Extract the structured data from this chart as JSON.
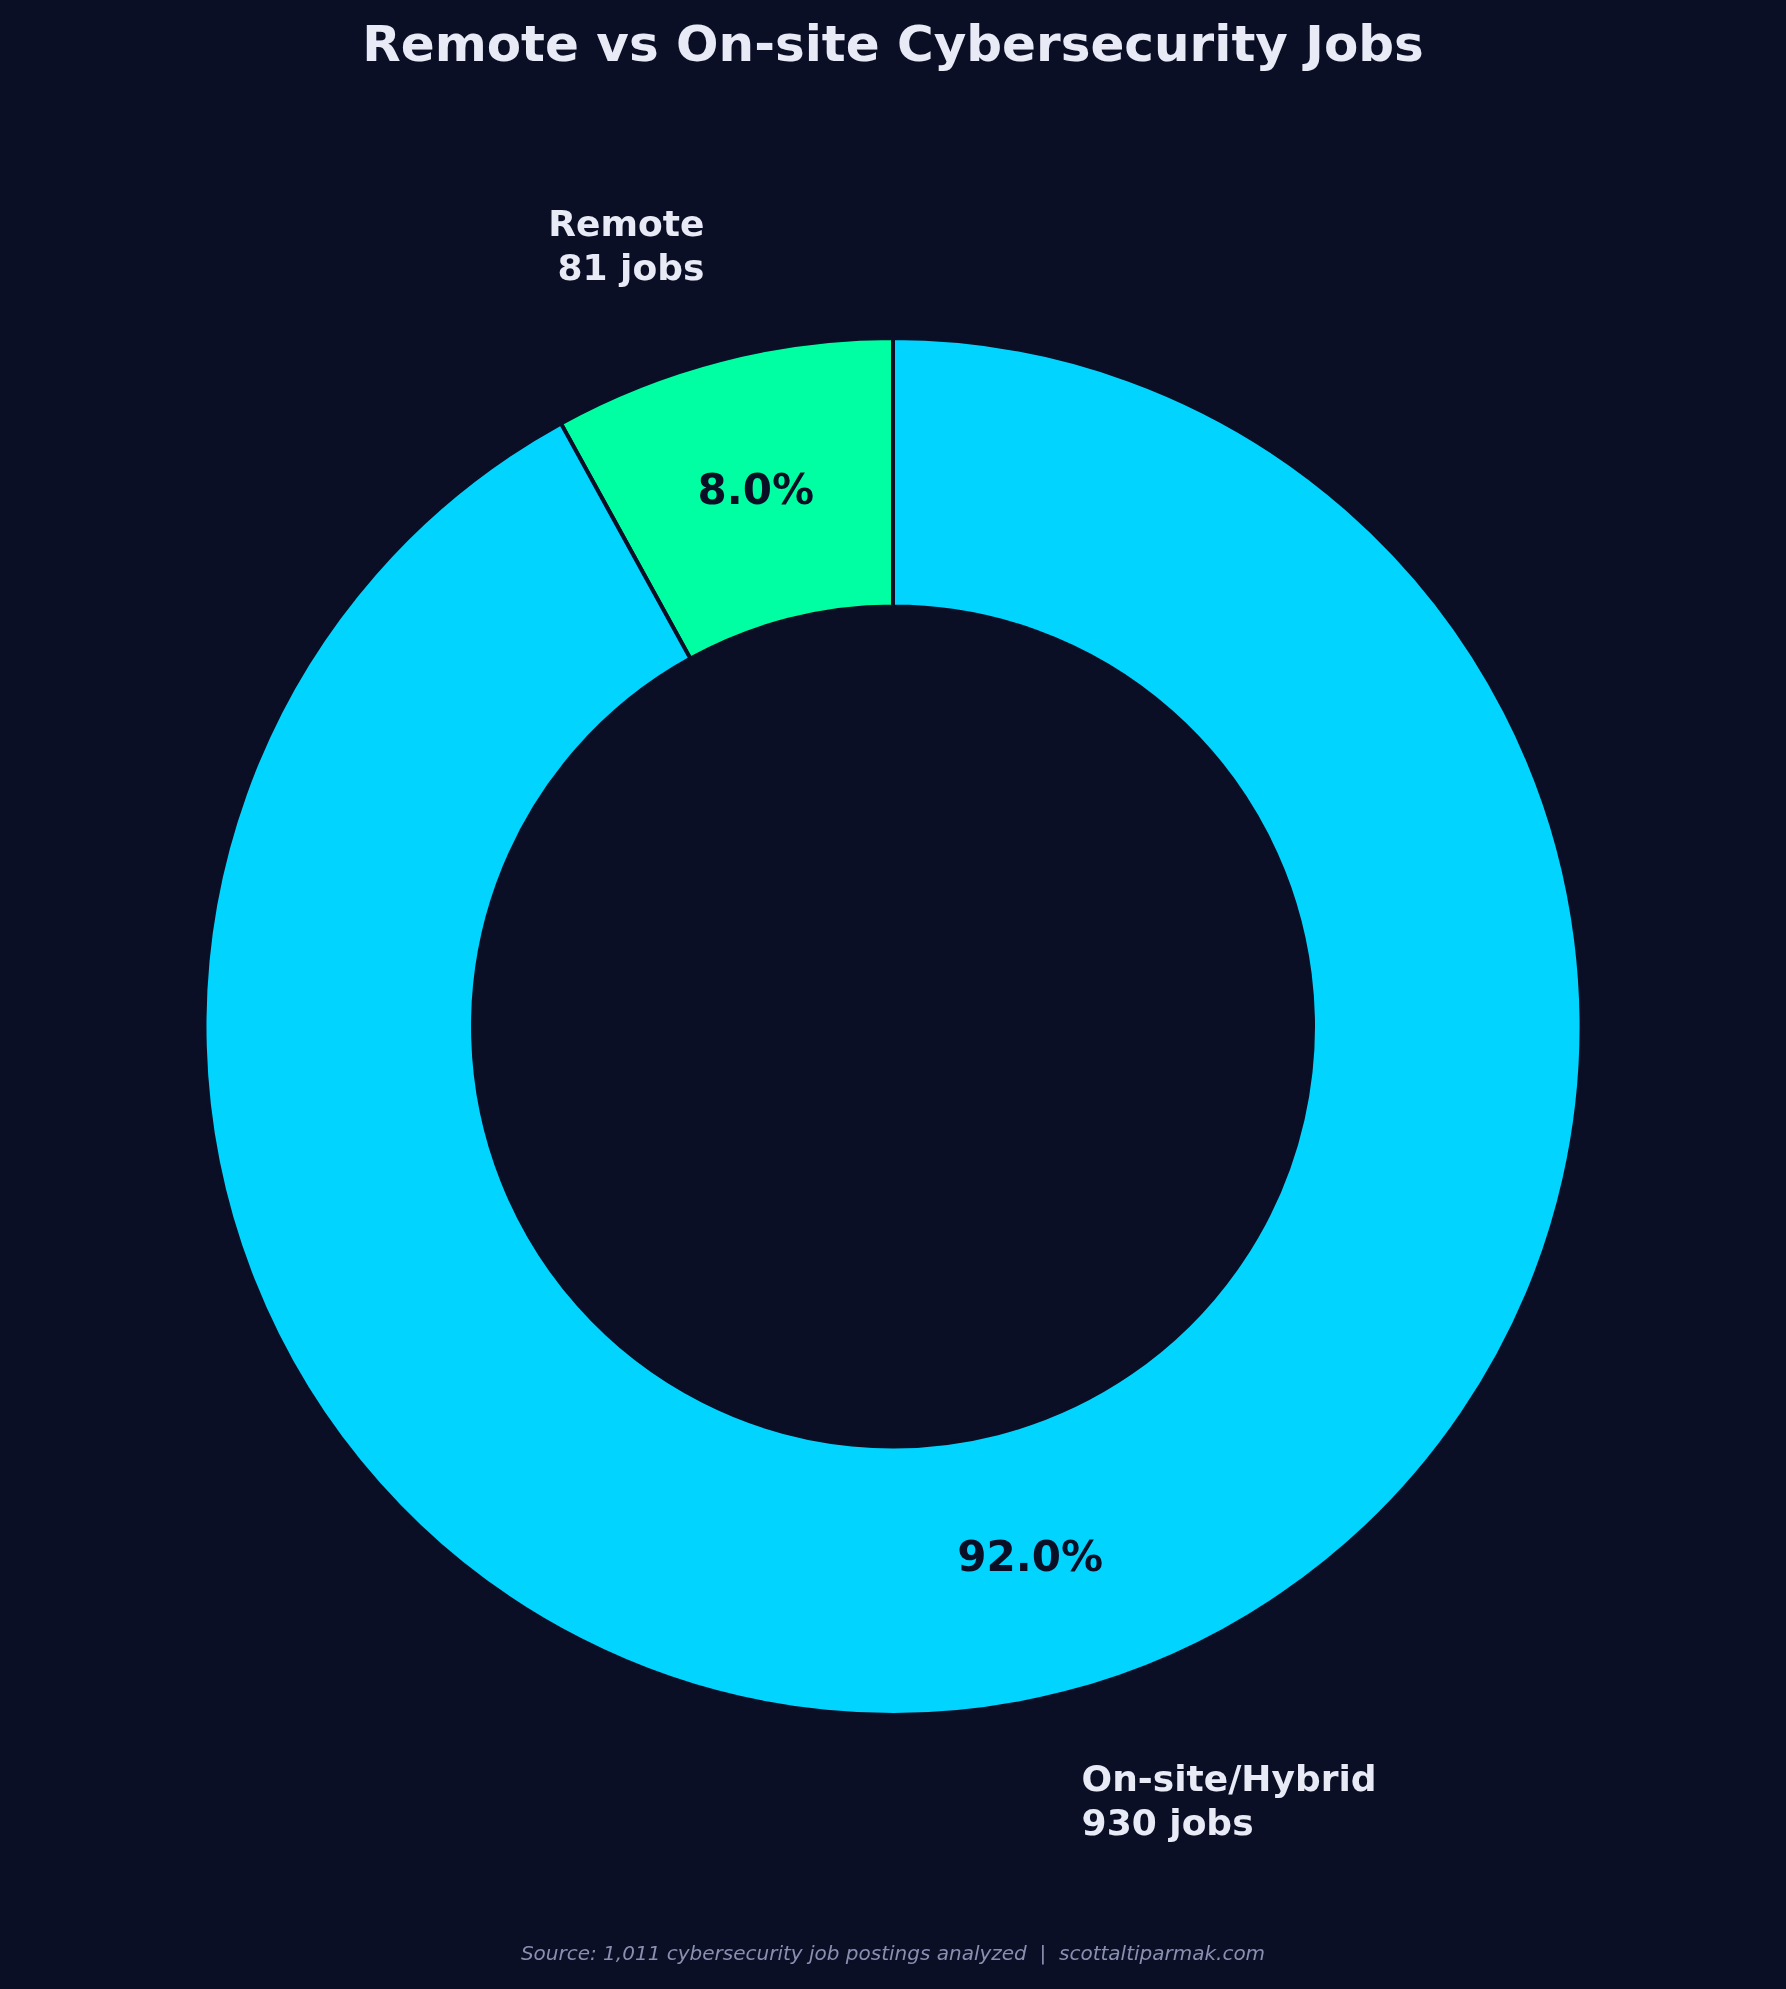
{
  "chart_data": {
    "type": "donut",
    "title": "Remote vs On-site Cybersecurity Jobs",
    "categories": [
      "Remote",
      "On-site/Hybrid"
    ],
    "values": [
      81,
      930
    ],
    "colors": [
      "#00ffa3",
      "#00d4ff"
    ],
    "value_labels": [
      "81 jobs",
      "930 jobs"
    ],
    "annotations": [
      "8.0%",
      "92.0%",
      "Source: 1,011 cybersecurity job postings analyzed  |  scottaltiparmak.com"
    ],
    "legend": false
  }
}
